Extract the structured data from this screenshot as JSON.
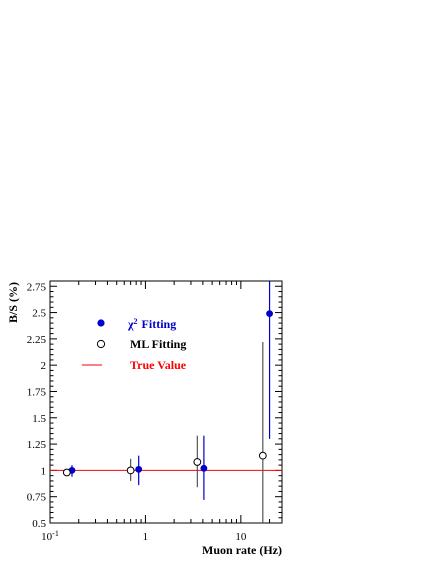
{
  "chart_data": {
    "type": "scatter",
    "xlabel": "Muon rate (Hz)",
    "ylabel": "B/S (%)",
    "xscale": "log",
    "xlim": [
      0.1,
      27
    ],
    "ylim": [
      0.5,
      2.8
    ],
    "x_tick_labels": [
      {
        "value": 0.1,
        "base": "10",
        "exp": "-1"
      },
      {
        "value": 1,
        "base": "1",
        "exp": ""
      },
      {
        "value": 10,
        "base": "10",
        "exp": ""
      }
    ],
    "y_ticks": [
      0.5,
      0.75,
      1,
      1.25,
      1.5,
      1.75,
      2,
      2.25,
      2.5,
      2.75
    ],
    "y_tick_labels": [
      "0.5",
      "0.75",
      "1",
      "1.25",
      "1.5",
      "1.75",
      "2",
      "2.25",
      "2.5",
      "2.75"
    ],
    "true_value": 1.0,
    "series": [
      {
        "name": "Fitting",
        "name_prefix": "χ",
        "name_sup": "2",
        "marker": "filled-circle",
        "color": "#0000cc",
        "points": [
          {
            "x": 0.17,
            "y": 1.0,
            "yerr_low": 0.94,
            "yerr_high": 1.05
          },
          {
            "x": 0.85,
            "y": 1.01,
            "yerr_low": 0.86,
            "yerr_high": 1.14
          },
          {
            "x": 4.1,
            "y": 1.02,
            "yerr_low": 0.72,
            "yerr_high": 1.33
          },
          {
            "x": 20.0,
            "y": 2.49,
            "yerr_low": 1.3,
            "yerr_high": 2.8
          }
        ]
      },
      {
        "name": "ML Fitting",
        "marker": "open-circle",
        "color": "#000000",
        "errcolor": "#555555",
        "points": [
          {
            "x": 0.15,
            "y": 0.98,
            "yerr_low": 0.95,
            "yerr_high": 1.01
          },
          {
            "x": 0.7,
            "y": 1.0,
            "yerr_low": 0.9,
            "yerr_high": 1.11
          },
          {
            "x": 3.5,
            "y": 1.08,
            "yerr_low": 0.84,
            "yerr_high": 1.33
          },
          {
            "x": 17.0,
            "y": 1.14,
            "yerr_low": 0.5,
            "yerr_high": 2.22
          }
        ]
      }
    ],
    "reference_line": {
      "name": "True Value",
      "color": "#ff0000"
    },
    "legend_placement": "upper-left"
  }
}
